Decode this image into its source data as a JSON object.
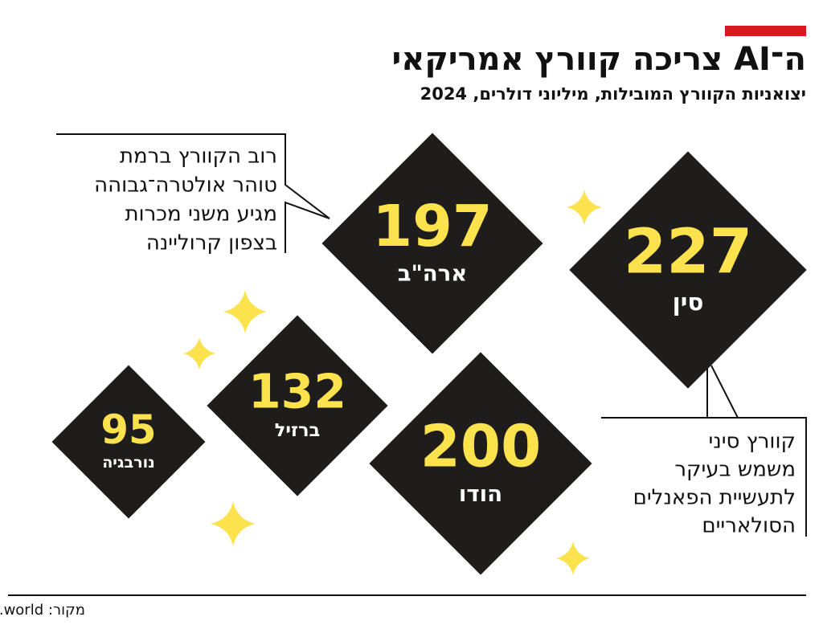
{
  "chart_data": {
    "type": "diamond",
    "title": "ה־AI צריכה קוורץ אמריקאי",
    "subtitle": "יצואניות הקוורץ המובילות, מיליוני דולרים, 2024",
    "categories": [
      "סין",
      "ארה\"ב",
      "הודו",
      "ברזיל",
      "נורבגיה"
    ],
    "values": [
      227,
      197,
      200,
      132,
      95
    ],
    "color": "#1f1d1c",
    "value_color": "#fce24d",
    "annotations": [
      [
        "רוב הקוורץ ברמת",
        "טוהר אולטרה־גבוהה",
        "מגיע משני מכרות",
        "בצפון קרוליינה"
      ],
      [
        "קוורץ סיני",
        "משמש בעיקר",
        "לתעשיית הפאנלים",
        "הסולאריים"
      ]
    ],
    "source": "מקור: oec.world"
  }
}
